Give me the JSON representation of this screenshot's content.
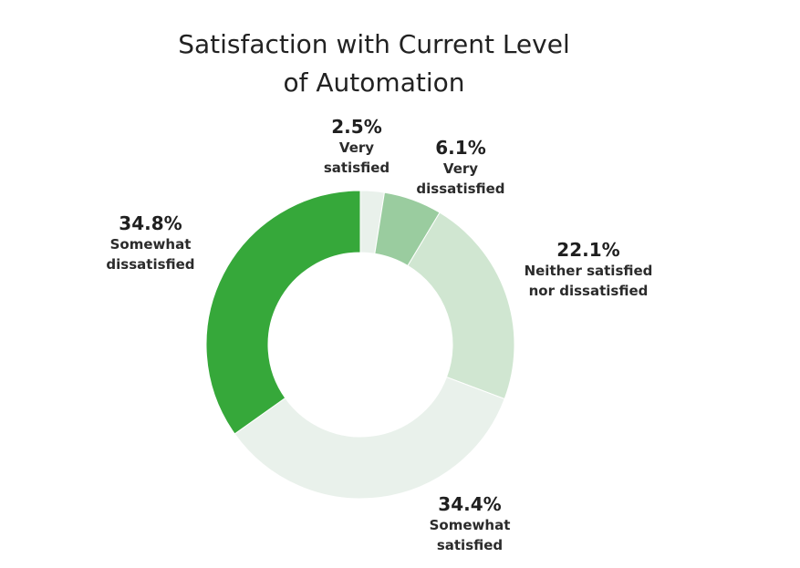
{
  "chart_data": {
    "type": "pie",
    "title_line1": "Satisfaction with Current Level",
    "title_line2": "of Automation",
    "series": [
      {
        "label_line1": "Very",
        "label_line2": "satisfied",
        "pct": "2.5%",
        "value": 2.5,
        "color": "#e9f1eb"
      },
      {
        "label_line1": "Very",
        "label_line2": "dissatisfied",
        "pct": "6.1%",
        "value": 6.1,
        "color": "#9acc9f"
      },
      {
        "label_line1": "Neither satisfied",
        "label_line2": "nor dissatisfied",
        "pct": "22.1%",
        "value": 22.1,
        "color": "#d0e6d1"
      },
      {
        "label_line1": "Somewhat",
        "label_line2": "satisfied",
        "pct": "34.4%",
        "value": 34.4,
        "color": "#e9f1eb"
      },
      {
        "label_line1": "Somewhat",
        "label_line2": "dissatisfied",
        "pct": "34.8%",
        "value": 34.8,
        "color": "#36a83a"
      }
    ],
    "donut": true
  }
}
